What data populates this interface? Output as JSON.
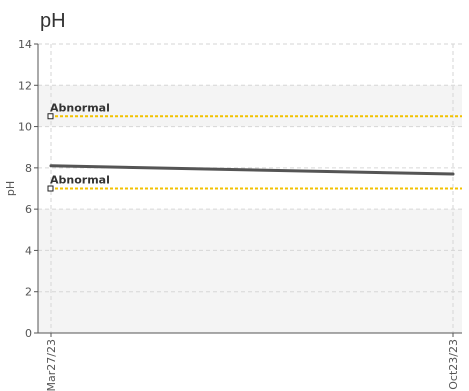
{
  "chart_data": {
    "type": "line",
    "title": "pH",
    "ylabel": "pH",
    "xlabel": "",
    "ylim": [
      0,
      14
    ],
    "yticks": [
      0,
      2,
      4,
      6,
      8,
      10,
      12,
      14
    ],
    "x": [
      "Mar27/23",
      "Oct23/23"
    ],
    "series": [
      {
        "values": [
          8.1,
          7.7
        ],
        "color": "#555555"
      }
    ],
    "thresholds": [
      {
        "label": "Abnormal",
        "value": 10.5,
        "color": "#f2c200"
      },
      {
        "label": "Abnormal",
        "value": 7.0,
        "color": "#f2c200"
      }
    ],
    "shaded_bands": [
      [
        0,
        6
      ],
      [
        10,
        12
      ]
    ],
    "grid": true
  }
}
